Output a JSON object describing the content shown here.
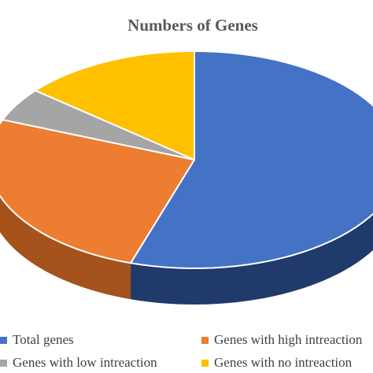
{
  "chart_data": {
    "type": "pie",
    "title": "Numbers of Genes",
    "three_d": true,
    "legend_placement": "bottom",
    "slices": [
      {
        "label": "Total genes",
        "value": 55,
        "color": "#4472C4",
        "side_color": "#1F3A6B"
      },
      {
        "label": "Genes with high intreaction",
        "value": 26,
        "color": "#ED7D31",
        "side_color": "#A5521C"
      },
      {
        "label": "Genes with low intreaction",
        "value": 5,
        "color": "#A5A5A5",
        "side_color": "#6E6E6E"
      },
      {
        "label": "Genes with no intreaction",
        "value": 14,
        "color": "#FFC000",
        "side_color": "#B08600"
      }
    ]
  }
}
